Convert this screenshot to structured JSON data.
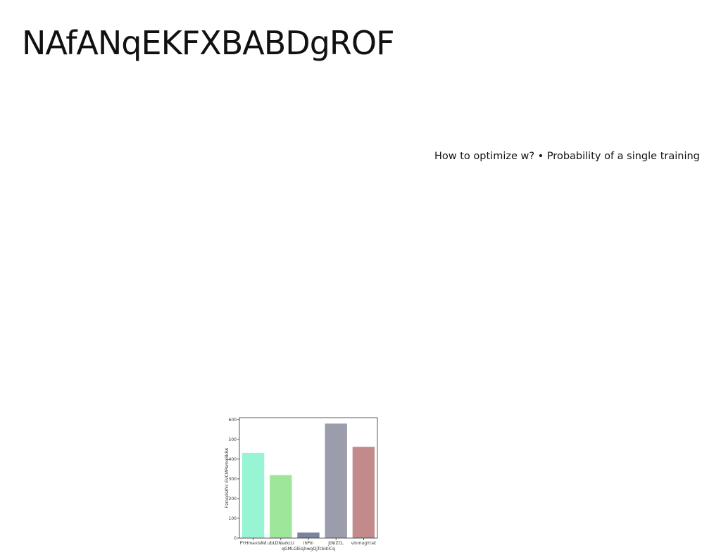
{
  "slide": {
    "title": "NAfANqEKFXBABDgROF",
    "text": "How to optimize w? • Probability of a single training"
  },
  "chart_data": {
    "type": "bar",
    "title": "",
    "xlabel": "qGMLGlEsjhwgQjTcbiKiCq",
    "ylabel": "FzroqdsAYc EVCMPemqBkRA",
    "categories": [
      "PYHmavisNd",
      "ubLDNsxkcU",
      "ihPin",
      "jtNiZCL",
      "vInmugYcet"
    ],
    "values": [
      432,
      319,
      28,
      580,
      462
    ],
    "colors": [
      "#98f5d4",
      "#9de69a",
      "#7b849e",
      "#9c9dac",
      "#c28a8b"
    ],
    "ylim": [
      0,
      610
    ],
    "yticks": [
      0,
      100,
      200,
      300,
      400,
      500,
      600
    ],
    "grid": false,
    "legend": "none"
  }
}
